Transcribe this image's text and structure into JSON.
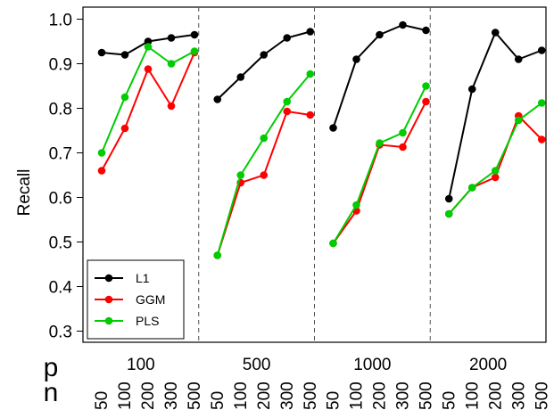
{
  "chart_data": {
    "type": "line",
    "ylabel": "Recall",
    "ylim": [
      0.28,
      1.02
    ],
    "yticks": [
      "0.3",
      "0.4",
      "0.5",
      "0.6",
      "0.7",
      "0.8",
      "0.9",
      "1.0"
    ],
    "row_labels": {
      "p": "p",
      "n": "n"
    },
    "n_values": [
      "50",
      "100",
      "200",
      "300",
      "500"
    ],
    "legend_position": "bottom-left",
    "groups": [
      {
        "p": "100",
        "series": [
          {
            "name": "L1",
            "color": "#000000",
            "values": [
              0.925,
              0.92,
              0.95,
              0.958,
              0.965
            ]
          },
          {
            "name": "GGM",
            "color": "#ff0000",
            "values": [
              0.66,
              0.755,
              0.888,
              0.805,
              0.925
            ]
          },
          {
            "name": "PLS",
            "color": "#00cc00",
            "values": [
              0.7,
              0.825,
              0.938,
              0.9,
              0.928
            ]
          }
        ]
      },
      {
        "p": "500",
        "series": [
          {
            "name": "L1",
            "color": "#000000",
            "values": [
              0.82,
              0.87,
              0.92,
              0.958,
              0.972
            ]
          },
          {
            "name": "GGM",
            "color": "#ff0000",
            "values": [
              0.47,
              0.633,
              0.65,
              0.793,
              0.785
            ]
          },
          {
            "name": "PLS",
            "color": "#00cc00",
            "values": [
              0.47,
              0.65,
              0.733,
              0.815,
              0.877
            ]
          }
        ]
      },
      {
        "p": "1000",
        "series": [
          {
            "name": "L1",
            "color": "#000000",
            "values": [
              0.756,
              0.91,
              0.965,
              0.987,
              0.975
            ]
          },
          {
            "name": "GGM",
            "color": "#ff0000",
            "values": [
              0.497,
              0.57,
              0.718,
              0.713,
              0.815
            ]
          },
          {
            "name": "PLS",
            "color": "#00cc00",
            "values": [
              0.497,
              0.583,
              0.722,
              0.745,
              0.85
            ]
          }
        ]
      },
      {
        "p": "2000",
        "series": [
          {
            "name": "L1",
            "color": "#000000",
            "values": [
              0.597,
              0.843,
              0.97,
              0.91,
              0.93
            ]
          },
          {
            "name": "GGM",
            "color": "#ff0000",
            "values": [
              0.563,
              0.622,
              0.645,
              0.783,
              0.73
            ]
          },
          {
            "name": "PLS",
            "color": "#00cc00",
            "values": [
              0.563,
              0.622,
              0.66,
              0.773,
              0.812
            ]
          }
        ]
      }
    ],
    "legend": [
      {
        "name": "L1",
        "color": "#000000"
      },
      {
        "name": "GGM",
        "color": "#ff0000"
      },
      {
        "name": "PLS",
        "color": "#00cc00"
      }
    ],
    "grid": false
  }
}
